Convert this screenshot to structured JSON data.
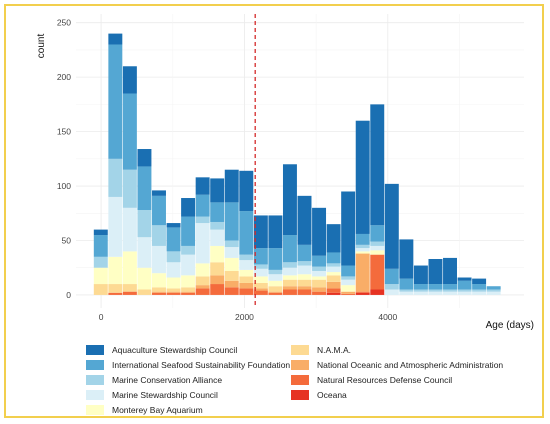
{
  "chart_data": {
    "type": "bar",
    "stacked": true,
    "xlabel": "Age (days)",
    "ylabel": "count",
    "xlim": [
      -350,
      5900
    ],
    "ylim": [
      -12,
      258
    ],
    "x_ticks": [
      0,
      2000,
      4000
    ],
    "y_ticks": [
      0,
      50,
      100,
      150,
      200,
      250
    ],
    "bin_width": 203,
    "grid": true,
    "legend_position": "bottom",
    "reference_line": {
      "x": 2150,
      "color": "#d42a2a",
      "style": "dashed"
    },
    "bins": [
      0,
      203,
      406,
      609,
      812,
      1015,
      1218,
      1421,
      1624,
      1827,
      2030,
      2233,
      2436,
      2639,
      2842,
      3045,
      3248,
      3451,
      3654,
      3857,
      4060,
      4263,
      4466,
      4669,
      4872,
      5075,
      5278,
      5481
    ],
    "series": [
      {
        "name": "Oceana",
        "color": "#e63222",
        "values": [
          0,
          0,
          0,
          0,
          0,
          0,
          0,
          0,
          0,
          0,
          0,
          0,
          0,
          0,
          0,
          0,
          2,
          0,
          2,
          5,
          0,
          0,
          0,
          0,
          0,
          0,
          0,
          0
        ]
      },
      {
        "name": "Natural Resources Defense Council",
        "color": "#f46b3c",
        "values": [
          0,
          2,
          3,
          0,
          2,
          2,
          2,
          6,
          10,
          7,
          6,
          4,
          2,
          5,
          5,
          3,
          4,
          1,
          1,
          32,
          0,
          0,
          0,
          0,
          0,
          0,
          0,
          0
        ]
      },
      {
        "name": "National Oceanic and Atmospheric Administration",
        "color": "#f9ad67",
        "values": [
          0,
          0,
          0,
          0,
          1,
          1,
          1,
          3,
          8,
          6,
          5,
          2,
          1,
          3,
          3,
          4,
          6,
          2,
          35,
          0,
          0,
          0,
          0,
          0,
          0,
          0,
          0,
          0
        ]
      },
      {
        "name": "N.A.M.A.",
        "color": "#fdda93",
        "values": [
          10,
          8,
          7,
          5,
          4,
          3,
          4,
          8,
          12,
          9,
          6,
          5,
          5,
          6,
          6,
          7,
          6,
          0,
          0,
          0,
          0,
          0,
          0,
          0,
          0,
          0,
          0,
          0
        ]
      },
      {
        "name": "Monterey Bay Aquarium",
        "color": "#ffffc4",
        "values": [
          15,
          25,
          30,
          20,
          13,
          10,
          11,
          12,
          15,
          12,
          6,
          6,
          5,
          4,
          5,
          3,
          3,
          6,
          2,
          4,
          0,
          0,
          0,
          0,
          0,
          0,
          0,
          0
        ]
      },
      {
        "name": "Marine Stewardship Council",
        "color": "#dbeff7",
        "values": [
          0,
          55,
          40,
          28,
          25,
          14,
          19,
          37,
          15,
          10,
          9,
          7,
          6,
          7,
          8,
          5,
          5,
          5,
          3,
          4,
          5,
          3,
          3,
          3,
          3,
          3,
          3,
          3
        ]
      },
      {
        "name": "Marine Conservation Alliance",
        "color": "#a3d4e8",
        "values": [
          10,
          35,
          35,
          25,
          19,
          10,
          8,
          6,
          7,
          6,
          5,
          4,
          4,
          5,
          4,
          4,
          3,
          3,
          3,
          4,
          5,
          2,
          2,
          2,
          2,
          2,
          2,
          2
        ]
      },
      {
        "name": "International Seafood Sustainability Foundation",
        "color": "#54a7d3",
        "values": [
          20,
          105,
          70,
          40,
          27,
          22,
          27,
          20,
          18,
          35,
          40,
          15,
          20,
          25,
          15,
          10,
          10,
          10,
          10,
          15,
          14,
          10,
          5,
          5,
          5,
          8,
          5,
          3
        ]
      },
      {
        "name": "Aquaculture Stewardship Council",
        "color": "#1a6fb2",
        "values": [
          5,
          10,
          25,
          16,
          5,
          4,
          17,
          16,
          22,
          30,
          37,
          30,
          30,
          65,
          45,
          44,
          26,
          68,
          104,
          111,
          78,
          36,
          17,
          23,
          24,
          3,
          5,
          0
        ]
      }
    ]
  }
}
